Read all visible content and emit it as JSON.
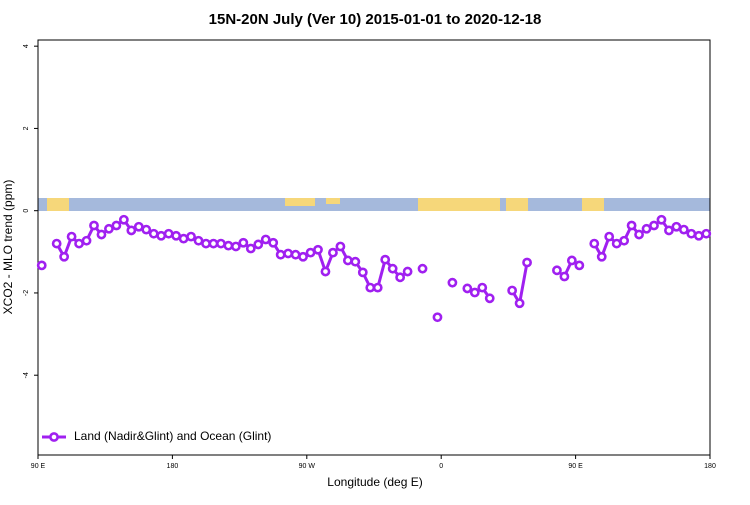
{
  "chart_data": {
    "type": "line",
    "title": "15N-20N July (Ver 10)   2015-01-01 to 2020-12-18",
    "x_label": "Longitude (deg E)",
    "y_label": "XCO2 - MLO trend (ppm)",
    "xlim": [
      90,
      540
    ],
    "ylim": [
      -5.94,
      4.15
    ],
    "xticks": [
      {
        "value": 90,
        "label": "90 E"
      },
      180,
      {
        "value": 270,
        "label": "90 W"
      },
      {
        "value": 360,
        "label": "0"
      },
      {
        "value": 450,
        "label": "90 E"
      },
      {
        "value": 540,
        "label": "180"
      }
    ],
    "yticks": [
      -4,
      -2,
      0,
      2,
      4
    ],
    "legend": "bottom-left",
    "x": [
      92.5,
      97.5,
      102.5,
      107.5,
      112.5,
      117.5,
      122.5,
      127.5,
      132.5,
      137.5,
      142.5,
      147.5,
      152.5,
      157.5,
      162.5,
      167.5,
      172.5,
      177.5,
      182.5,
      187.5,
      192.5,
      197.5,
      202.5,
      207.5,
      212.5,
      217.5,
      222.5,
      227.5,
      232.5,
      237.5,
      242.5,
      247.5,
      252.5,
      257.5,
      262.5,
      267.5,
      272.5,
      277.5,
      282.5,
      287.5,
      292.5,
      297.5,
      302.5,
      307.5,
      312.5,
      317.5,
      322.5,
      327.5,
      332.5,
      337.5,
      342.5,
      347.5,
      352.5,
      357.5,
      362.5,
      367.5,
      372.5,
      377.5,
      382.5,
      387.5,
      392.5,
      397.5,
      407.5,
      412.5,
      417.5,
      422.5,
      437.5,
      442.5,
      447.5,
      452.5,
      457.5,
      462.5,
      467.5,
      472.5,
      477.5,
      482.5,
      487.5,
      492.5,
      497.5,
      502.5,
      507.5,
      512.5,
      517.5,
      522.5,
      527.5,
      532.5,
      537.5
    ],
    "series": [
      {
        "name": "Land (Nadir&Glint) and Ocean (Glint)",
        "color": "#a020f0",
        "values": [
          -1.33,
          null,
          -0.8,
          -1.12,
          -0.63,
          -0.8,
          -0.73,
          -0.36,
          -0.58,
          -0.44,
          -0.36,
          -0.22,
          -0.48,
          -0.39,
          -0.46,
          -0.56,
          -0.61,
          -0.56,
          -0.61,
          -0.68,
          -0.63,
          -0.73,
          -0.8,
          -0.8,
          -0.8,
          -0.85,
          -0.87,
          -0.78,
          -0.92,
          -0.82,
          -0.7,
          -0.78,
          -1.07,
          -1.04,
          -1.07,
          -1.12,
          -1.02,
          -0.95,
          -1.48,
          -1.02,
          -0.87,
          -1.21,
          -1.24,
          -1.5,
          -1.87,
          -1.87,
          -1.19,
          -1.41,
          -1.62,
          -1.48,
          null,
          -1.41,
          null,
          -2.59,
          null,
          -1.75,
          null,
          -1.89,
          -1.99,
          -1.87,
          -2.13,
          null,
          -1.94,
          -2.25,
          -1.26,
          null,
          -1.45,
          -1.6,
          -1.21,
          -1.33,
          null,
          -0.8,
          -1.12,
          -0.63,
          -0.8,
          -0.73,
          -0.36,
          -0.58,
          -0.44,
          -0.36,
          -0.22,
          -0.48,
          -0.39,
          -0.46,
          -0.56,
          -0.61,
          -0.56
        ]
      }
    ]
  }
}
